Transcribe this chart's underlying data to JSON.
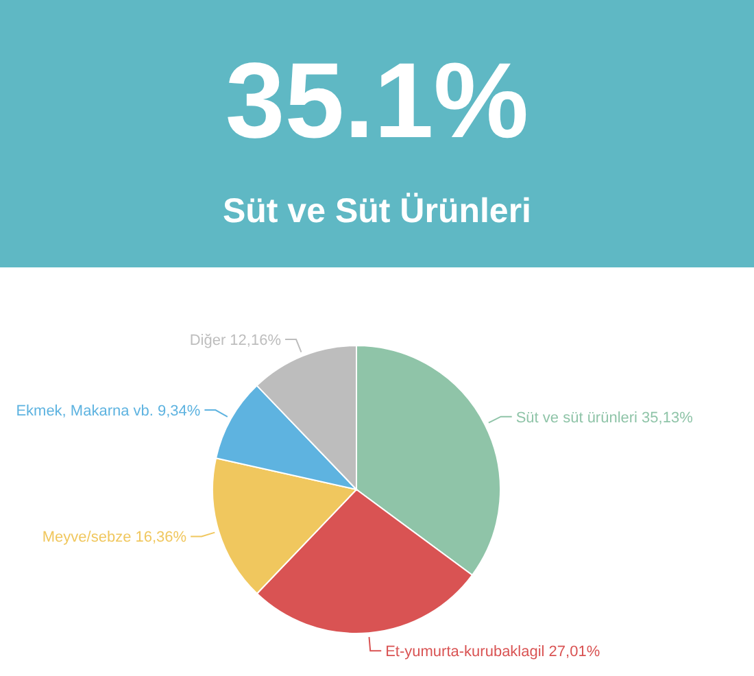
{
  "chart_data": {
    "type": "pie",
    "title": "35.1%",
    "subtitle": "Süt ve Süt Ürünleri",
    "categories": [
      "Süt ve süt ürünleri",
      "Et-yumurta-kurubaklagil",
      "Meyve/sebze",
      "Ekmek, Makarna vb.",
      "Diğer"
    ],
    "values": [
      35.13,
      27.01,
      16.36,
      9.34,
      12.16
    ],
    "colors": [
      "#8fc4a8",
      "#d95353",
      "#f0c75e",
      "#5eb3e0",
      "#bdbdbd"
    ],
    "value_labels": [
      "35,13%",
      "27,01%",
      "16,36%",
      "9,34%",
      "12,16%"
    ],
    "legend": false
  }
}
